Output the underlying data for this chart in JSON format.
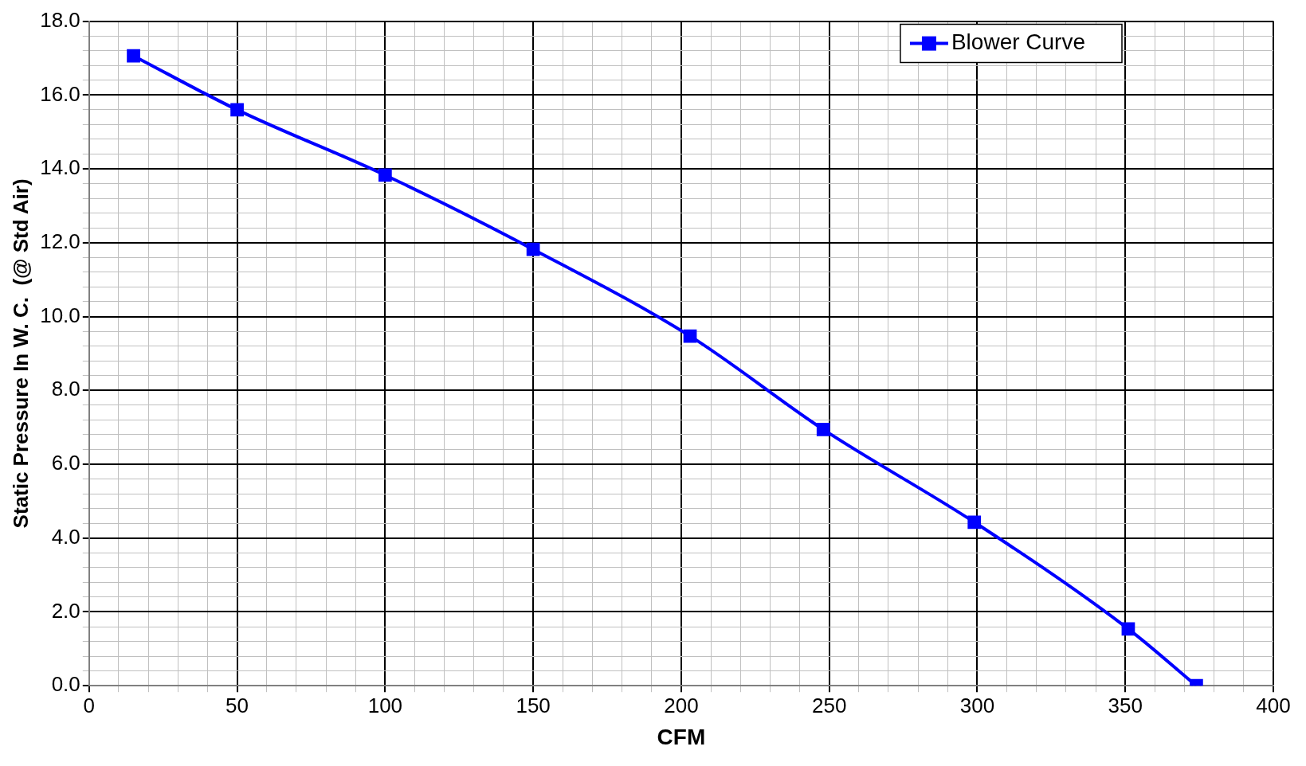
{
  "chart_data": {
    "type": "line",
    "xlabel": "CFM",
    "ylabel": "Static Pressure In W. C.  (@ Std Air)",
    "series": [
      {
        "name": "Blower Curve",
        "color": "#0000ff",
        "x": [
          15,
          50,
          100,
          150,
          203,
          248,
          299,
          351,
          374
        ],
        "values": [
          17.06,
          15.6,
          13.83,
          11.82,
          9.47,
          6.94,
          4.43,
          1.54,
          0
        ]
      }
    ],
    "xlim": [
      0,
      400
    ],
    "xticks": [
      0,
      {
        "value": 10,
        "label": null
      },
      {
        "value": 20,
        "label": null
      },
      {
        "value": 30,
        "label": null
      },
      {
        "value": 40,
        "label": null
      },
      50,
      {
        "value": 60,
        "label": null
      },
      {
        "value": 70,
        "label": null
      },
      {
        "value": 80,
        "label": null
      },
      {
        "value": 90,
        "label": null
      },
      100,
      {
        "value": 110,
        "label": null
      },
      {
        "value": 120,
        "label": null
      },
      {
        "value": 130,
        "label": null
      },
      {
        "value": 140,
        "label": null
      },
      150,
      {
        "value": 160,
        "label": null
      },
      {
        "value": 170,
        "label": null
      },
      {
        "value": 180,
        "label": null
      },
      {
        "value": 190,
        "label": null
      },
      200,
      {
        "value": 210,
        "label": null
      },
      {
        "value": 220,
        "label": null
      },
      {
        "value": 230,
        "label": null
      },
      {
        "value": 240,
        "label": null
      },
      250,
      {
        "value": 260,
        "label": null
      },
      {
        "value": 270,
        "label": null
      },
      {
        "value": 280,
        "label": null
      },
      {
        "value": 290,
        "label": null
      },
      300,
      {
        "value": 310,
        "label": null
      },
      {
        "value": 320,
        "label": null
      },
      {
        "value": 330,
        "label": null
      },
      {
        "value": 340,
        "label": null
      },
      350,
      {
        "value": 360,
        "label": null
      },
      {
        "value": 370,
        "label": null
      },
      {
        "value": 380,
        "label": null
      },
      {
        "value": 390,
        "label": null
      },
      400
    ],
    "ylim": [
      0,
      18
    ],
    "yticks": [
      {
        "value": 0,
        "label": "0.0"
      },
      {
        "value": 0.4,
        "label": null
      },
      {
        "value": 0.8,
        "label": null
      },
      {
        "value": 1.2,
        "label": null
      },
      {
        "value": 1.6,
        "label": null
      },
      {
        "value": 2,
        "label": "2.0"
      },
      {
        "value": 2.4,
        "label": null
      },
      {
        "value": 2.8,
        "label": null
      },
      {
        "value": 3.2,
        "label": null
      },
      {
        "value": 3.6,
        "label": null
      },
      {
        "value": 4,
        "label": "4.0"
      },
      {
        "value": 4.4,
        "label": null
      },
      {
        "value": 4.8,
        "label": null
      },
      {
        "value": 5.2,
        "label": null
      },
      {
        "value": 5.6,
        "label": null
      },
      {
        "value": 6,
        "label": "6.0"
      },
      {
        "value": 6.4,
        "label": null
      },
      {
        "value": 6.8,
        "label": null
      },
      {
        "value": 7.2,
        "label": null
      },
      {
        "value": 7.6,
        "label": null
      },
      {
        "value": 8,
        "label": "8.0"
      },
      {
        "value": 8.4,
        "label": null
      },
      {
        "value": 8.8,
        "label": null
      },
      {
        "value": 9.2,
        "label": null
      },
      {
        "value": 9.6,
        "label": null
      },
      {
        "value": 10,
        "label": "10.0"
      },
      {
        "value": 10.4,
        "label": null
      },
      {
        "value": 10.8,
        "label": null
      },
      {
        "value": 11.2,
        "label": null
      },
      {
        "value": 11.6,
        "label": null
      },
      {
        "value": 12,
        "label": "12.0"
      },
      {
        "value": 12.4,
        "label": null
      },
      {
        "value": 12.8,
        "label": null
      },
      {
        "value": 13.2,
        "label": null
      },
      {
        "value": 13.6,
        "label": null
      },
      {
        "value": 14,
        "label": "14.0"
      },
      {
        "value": 14.4,
        "label": null
      },
      {
        "value": 14.8,
        "label": null
      },
      {
        "value": 15.2,
        "label": null
      },
      {
        "value": 15.6,
        "label": null
      },
      {
        "value": 16,
        "label": "16.0"
      },
      {
        "value": 16.4,
        "label": null
      },
      {
        "value": 16.8,
        "label": null
      },
      {
        "value": 17.2,
        "label": null
      },
      {
        "value": 17.6,
        "label": null
      },
      {
        "value": 18,
        "label": "18.0"
      }
    ],
    "grid": true,
    "legend": "top right",
    "marker": "square",
    "line_style": "solid"
  }
}
